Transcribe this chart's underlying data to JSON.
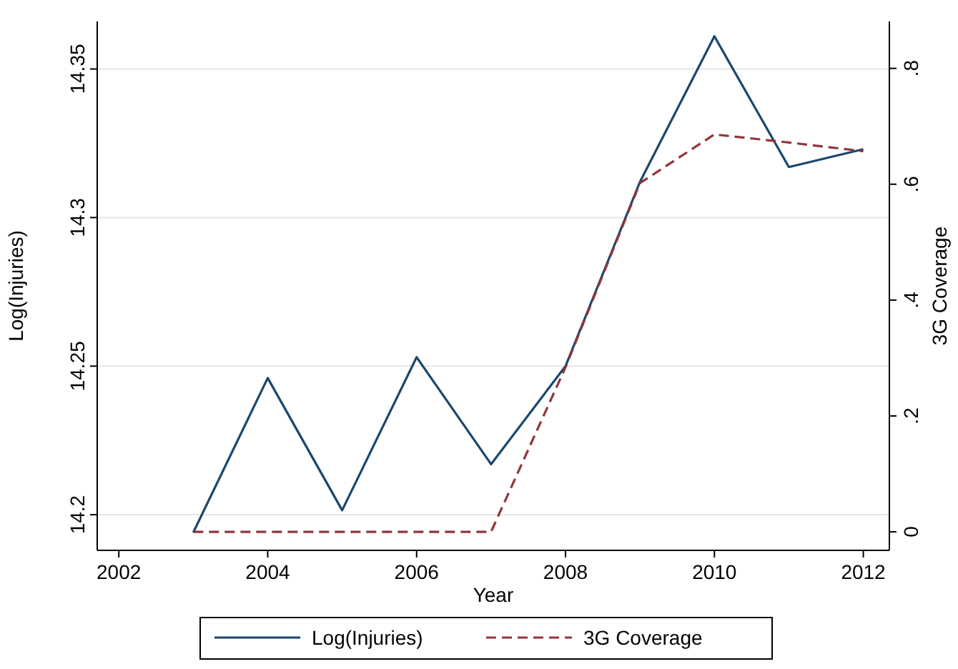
{
  "chart_data": {
    "type": "line",
    "xlabel": "Year",
    "ylabel": "Log(Injuries)",
    "y2label": "3G Coverage",
    "x": [
      2003,
      2004,
      2005,
      2006,
      2007,
      2008,
      2009,
      2010,
      2011,
      2012
    ],
    "xlim": [
      2001.71,
      2012.35
    ],
    "xticks": [
      2002,
      2004,
      2006,
      2008,
      2010,
      2012
    ],
    "ylim": [
      14.188,
      14.366
    ],
    "yticks": [
      14.2,
      14.25,
      14.3,
      14.35
    ],
    "y2lim": [
      -0.032,
      0.881
    ],
    "y2ticks": [
      {
        "value": 0,
        "label": "0"
      },
      {
        "value": 0.2,
        "label": ".2"
      },
      {
        "value": 0.4,
        "label": ".4"
      },
      {
        "value": 0.6,
        "label": ".6"
      },
      {
        "value": 0.8,
        "label": ".8"
      }
    ],
    "series": [
      {
        "name": "Log(Injuries)",
        "color": "#1a476f",
        "line_style": "solid",
        "values": [
          14.194,
          14.246,
          14.2015,
          14.253,
          14.217,
          14.25,
          14.312,
          14.361,
          14.317,
          14.323
        ]
      },
      {
        "name": "3G Coverage",
        "color": "#90353b",
        "line_style": "dashed",
        "axis": "y2",
        "values": [
          0,
          0,
          0,
          0,
          0,
          0.284,
          0.602,
          0.686,
          0.672,
          0.657
        ]
      }
    ],
    "grid": "y",
    "legend": "bottom",
    "marker": "none"
  }
}
